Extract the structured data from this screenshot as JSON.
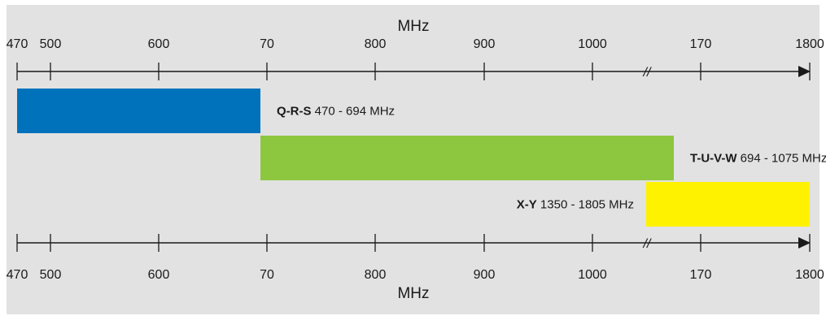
{
  "chart_data": {
    "type": "bar",
    "orientation": "horizontal",
    "unit": "MHz",
    "top_axis_ticks": [
      "470",
      "500",
      "600",
      "70",
      "800",
      "900",
      "1000",
      "170",
      "1800"
    ],
    "bottom_axis_ticks": [
      "470",
      "500",
      "600",
      "70",
      "800",
      "900",
      "1000",
      "170",
      "1800"
    ],
    "axis_break_marker": "//",
    "axis_break_between": [
      "1000",
      "170"
    ],
    "colors": {
      "background": "#e2e2e2",
      "axis": "#1a1a1a"
    },
    "bands": [
      {
        "name": "Q-R-S",
        "range_text": "470 - 694 MHz",
        "start_mhz": 470,
        "end_mhz": 694,
        "color": "#0072bc",
        "label_side": "right"
      },
      {
        "name": "T-U-V-W",
        "range_text": "694 - 1075 MHz",
        "start_mhz": 694,
        "end_mhz": 1075,
        "color": "#8dc63f",
        "label_side": "right"
      },
      {
        "name": "X-Y",
        "range_text": "1350 - 1805 MHz",
        "start_mhz": 1350,
        "end_mhz": 1805,
        "color": "#fff200",
        "label_side": "left"
      }
    ]
  }
}
